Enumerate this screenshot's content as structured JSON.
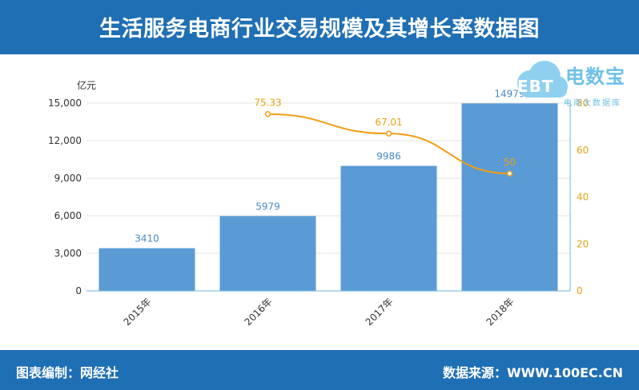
{
  "header": {
    "title": "生活服务电商行业交易规模及其增长率数据图"
  },
  "footer": {
    "left": "图表编制：网经社",
    "right": "数据来源：WWW.100EC.CN"
  },
  "logo": {
    "main": "电数宝",
    "sub": "电商大数据库",
    "badge": "EBT"
  },
  "chart_data": {
    "type": "bar",
    "unit_label": "亿元",
    "categories": [
      "2015年",
      "2016年",
      "2017年",
      "2018年"
    ],
    "series": [
      {
        "type": "bar",
        "values": [
          3410,
          5979,
          9986,
          14979
        ],
        "color": "#5b9bd5"
      },
      {
        "type": "line",
        "values": [
          null,
          75.33,
          67.01,
          50
        ],
        "color": "#f39c12"
      }
    ],
    "y_left": {
      "min": 0,
      "max": 15000,
      "ticks": [
        "0",
        "3,000",
        "6,000",
        "9,000",
        "12,000",
        "15,000"
      ]
    },
    "y_right": {
      "min": 0,
      "max": 80,
      "ticks": [
        "0",
        "20",
        "40",
        "60",
        "80"
      ]
    },
    "grid": true
  }
}
